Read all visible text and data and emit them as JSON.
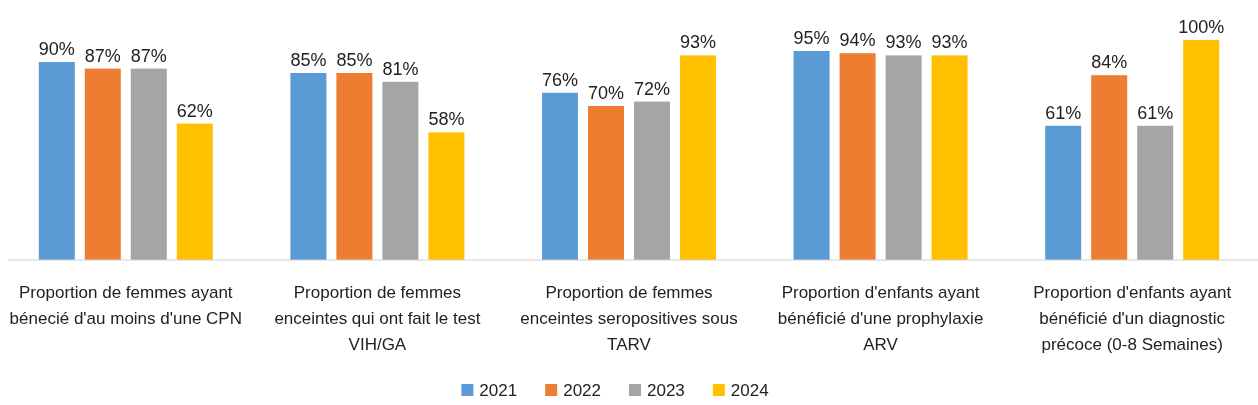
{
  "chart_data": {
    "type": "bar",
    "categories": [
      "Proportion de femmes ayant bénecié d'au moins d'une CPN",
      "Proportion de femmes enceintes qui ont fait le test VIH/GA",
      "Proportion de femmes enceintes seropositives sous TARV",
      "Proportion d'enfants ayant bénéficié d'une prophylaxie ARV",
      "Proportion d'enfants ayant bénéficié d'un diagnostic précoce (0-8 Semaines)"
    ],
    "series": [
      {
        "name": "2021",
        "color": "#5b9bd5",
        "values": [
          90,
          85,
          76,
          95,
          61
        ],
        "value_labels": [
          "90%",
          "85%",
          "76%",
          "95%",
          "61%"
        ]
      },
      {
        "name": "2022",
        "color": "#ed7d31",
        "values": [
          87,
          85,
          70,
          94,
          84
        ],
        "value_labels": [
          "87%",
          "85%",
          "70%",
          "94%",
          "84%"
        ]
      },
      {
        "name": "2023",
        "color": "#a5a5a5",
        "values": [
          87,
          81,
          72,
          93,
          61
        ],
        "value_labels": [
          "87%",
          "81%",
          "72%",
          "93%",
          "61%"
        ]
      },
      {
        "name": "2024",
        "color": "#ffc000",
        "values": [
          62,
          58,
          93,
          93,
          100
        ],
        "value_labels": [
          "62%",
          "58%",
          "93%",
          "93%",
          "100%"
        ]
      }
    ],
    "legend": "bottom"
  }
}
